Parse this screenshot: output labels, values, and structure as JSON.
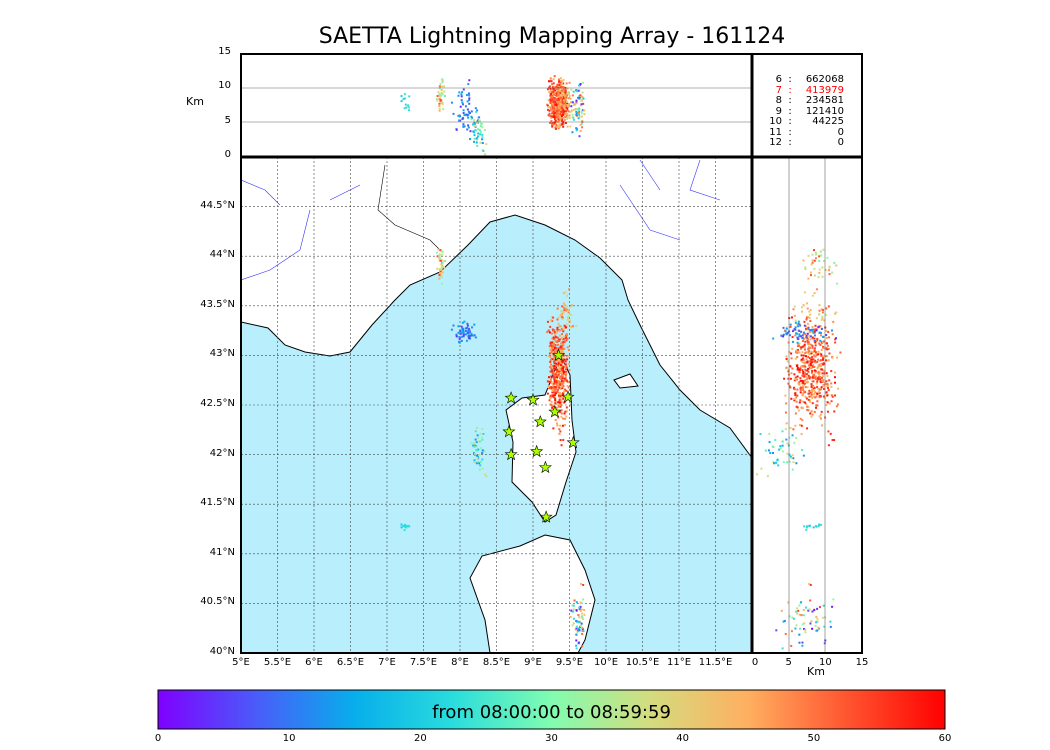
{
  "title": "SAETTA Lightning Mapping Array - 161124",
  "colorbar": {
    "label": "from 08:00:00 to 08:59:59",
    "ticks": [
      "0",
      "10",
      "20",
      "30",
      "40",
      "50",
      "60"
    ],
    "range": [
      0,
      60
    ],
    "colors": [
      "#7f00ff",
      "#4a5cf9",
      "#07aeeb",
      "#2adddd",
      "#81fcb0",
      "#d4dc7f",
      "#ffaf60",
      "#ff5530",
      "#ff0000"
    ]
  },
  "colors": {
    "sea": "#b9eefd",
    "red": "#ff0000"
  },
  "legend": [
    {
      "n": "6",
      "v": "662068",
      "highlight": false
    },
    {
      "n": "7",
      "v": "413979",
      "highlight": true
    },
    {
      "n": "8",
      "v": "234581",
      "highlight": false
    },
    {
      "n": "9",
      "v": "121410",
      "highlight": false
    },
    {
      "n": "10",
      "v": "44225",
      "highlight": false
    },
    {
      "n": "11",
      "v": "0",
      "highlight": false
    },
    {
      "n": "12",
      "v": "0",
      "highlight": false
    }
  ],
  "chart_data": {
    "type": "scatter",
    "title": "SAETTA Lightning Mapping Array - 161124",
    "map": {
      "xlim": [
        5,
        12
      ],
      "ylim": [
        40,
        45
      ],
      "xticks": [
        "5°E",
        "5.5°E",
        "6°E",
        "6.5°E",
        "7°E",
        "7.5°E",
        "8°E",
        "8.5°E",
        "9°E",
        "9.5°E",
        "10°E",
        "10.5°E",
        "11°E",
        "11.5°E"
      ],
      "yticks": [
        "40°N",
        "40.5°N",
        "41°N",
        "41.5°N",
        "42°N",
        "42.5°N",
        "43°N",
        "43.5°N",
        "44°N",
        "44.5°N"
      ]
    },
    "altitude_panel": {
      "ylabel": "Km",
      "ylim": [
        0,
        15
      ],
      "yticks": [
        "0",
        "5",
        "10",
        "15"
      ]
    },
    "side_panel": {
      "xlabel": "Km",
      "xlim": [
        0,
        15
      ],
      "xticks": [
        "0",
        "5",
        "10",
        "15"
      ]
    },
    "clusters": [
      {
        "lon": 9.33,
        "lat": 42.85,
        "slon": 0.09,
        "slat": 0.38,
        "alt": 8,
        "salt": 2.2,
        "t0": 42,
        "t1": 60,
        "n": 520
      },
      {
        "lon": 9.45,
        "lat": 43.4,
        "slon": 0.08,
        "slat": 0.15,
        "alt": 8,
        "salt": 2,
        "t0": 35,
        "t1": 50,
        "n": 40
      },
      {
        "lon": 7.72,
        "lat": 43.95,
        "slon": 0.04,
        "slat": 0.12,
        "alt": 9,
        "salt": 1.5,
        "t0": 28,
        "t1": 55,
        "n": 40
      },
      {
        "lon": 8.05,
        "lat": 43.25,
        "slon": 0.1,
        "slat": 0.07,
        "alt": 7,
        "salt": 2.5,
        "t0": 3,
        "t1": 16,
        "n": 60
      },
      {
        "lon": 8.25,
        "lat": 42.05,
        "slon": 0.06,
        "slat": 0.15,
        "alt": 4,
        "salt": 2,
        "t0": 10,
        "t1": 40,
        "n": 50
      },
      {
        "lon": 7.25,
        "lat": 41.28,
        "slon": 0.04,
        "slat": 0.03,
        "alt": 8,
        "salt": 1,
        "t0": 18,
        "t1": 24,
        "n": 12
      },
      {
        "lon": 9.6,
        "lat": 40.35,
        "slon": 0.06,
        "slat": 0.22,
        "alt": 7,
        "salt": 2.5,
        "t0": 0,
        "t1": 55,
        "n": 70
      }
    ]
  }
}
